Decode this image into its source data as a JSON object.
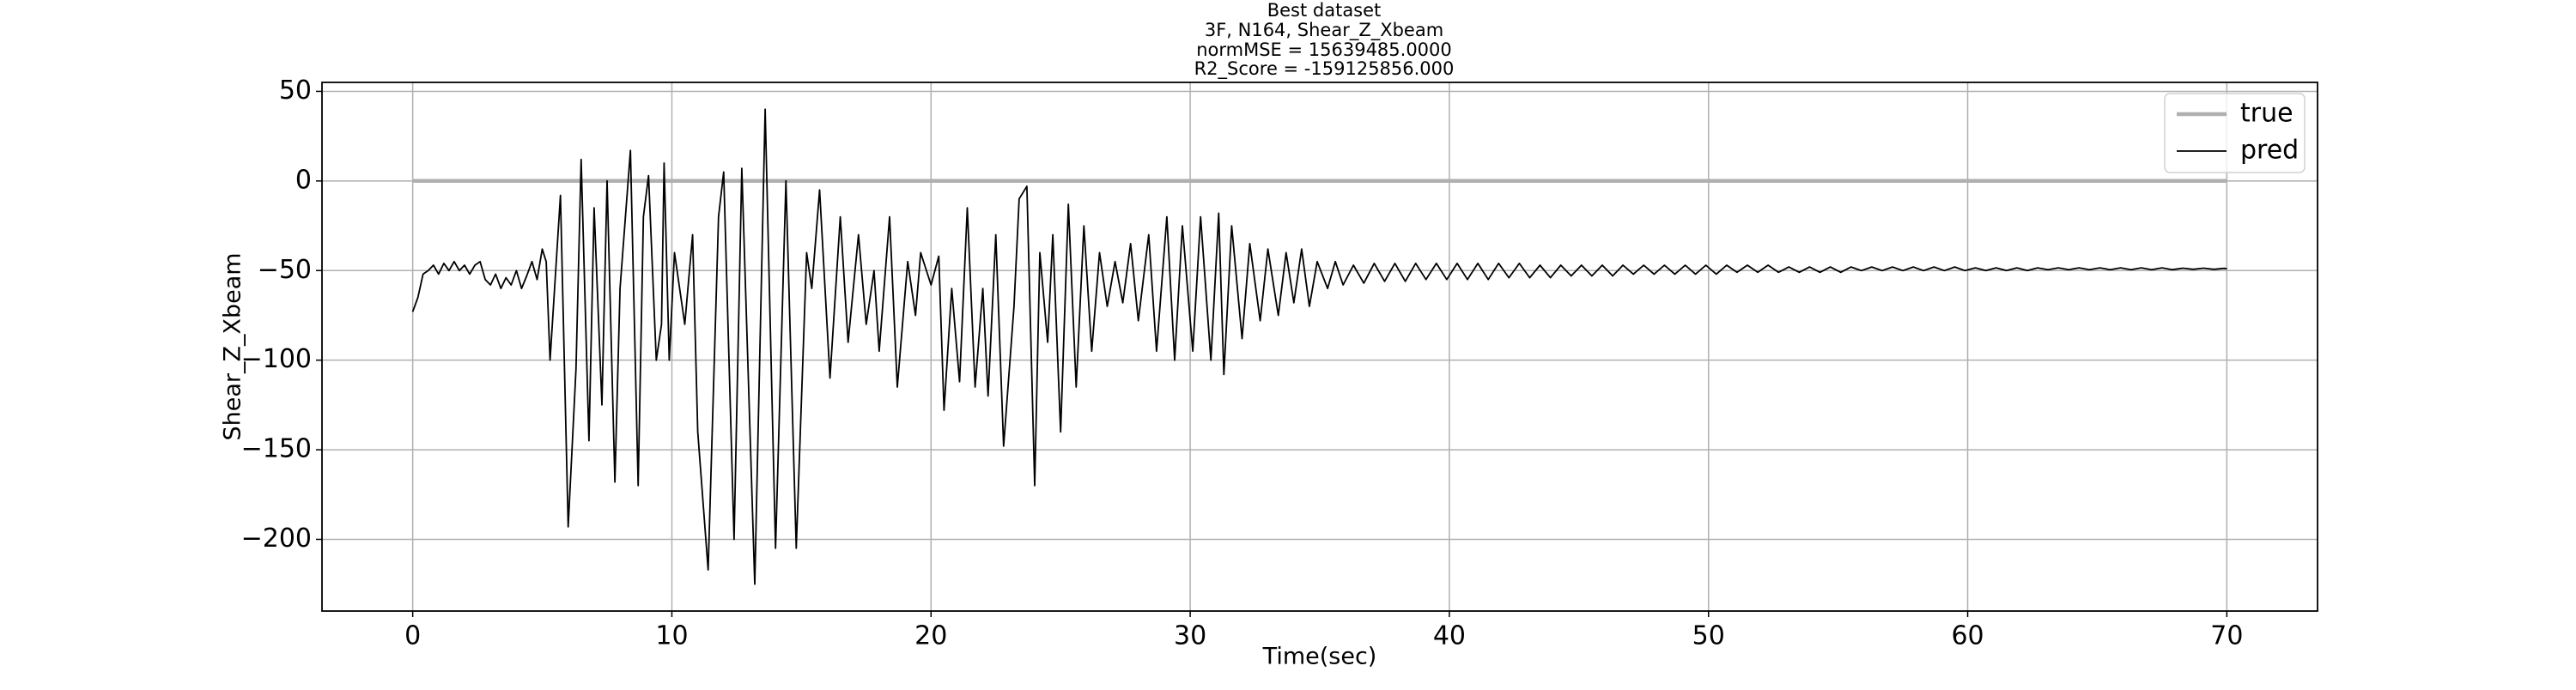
{
  "chart_data": {
    "type": "line",
    "title": [
      "Best dataset",
      "3F, N164, Shear_Z_Xbeam",
      "normMSE = 15639485.0000",
      "R2_Score = -159125856.000"
    ],
    "xlabel": "Time(sec)",
    "ylabel": "Shear_Z_Xbeam",
    "xlim": [
      -3.5,
      73.5
    ],
    "ylim": [
      -240,
      55
    ],
    "xticks": [
      0,
      10,
      20,
      30,
      40,
      50,
      60,
      70
    ],
    "yticks": [
      50,
      0,
      {
        "value": -50,
        "label": "−50"
      },
      {
        "value": -100,
        "label": "−100"
      },
      {
        "value": -150,
        "label": "−150"
      },
      {
        "value": -200,
        "label": "−200"
      }
    ],
    "grid": true,
    "legend": "upper right",
    "series": [
      {
        "name": "true",
        "color": "#b0b0b0",
        "x": [
          0,
          70
        ],
        "values": [
          0,
          0
        ]
      },
      {
        "name": "pred",
        "color": "#000000",
        "x": [
          0,
          0.2,
          0.4,
          0.6,
          0.8,
          1.0,
          1.2,
          1.4,
          1.6,
          1.8,
          2.0,
          2.2,
          2.4,
          2.6,
          2.8,
          3.0,
          3.2,
          3.4,
          3.6,
          3.8,
          4.0,
          4.2,
          4.4,
          4.6,
          4.8,
          5.0,
          5.15,
          5.3,
          5.7,
          6.0,
          6.3,
          6.5,
          6.8,
          7.0,
          7.3,
          7.5,
          7.8,
          8.0,
          8.4,
          8.7,
          8.9,
          9.1,
          9.4,
          9.6,
          9.7,
          9.9,
          10.1,
          10.5,
          10.8,
          11.0,
          11.4,
          11.8,
          12.0,
          12.4,
          12.7,
          13.2,
          13.6,
          14.0,
          14.4,
          14.8,
          15.2,
          15.4,
          15.7,
          16.1,
          16.5,
          16.8,
          17.2,
          17.5,
          17.8,
          18.0,
          18.4,
          18.7,
          19.1,
          19.4,
          19.6,
          20.0,
          20.3,
          20.5,
          20.8,
          21.1,
          21.4,
          21.7,
          22.0,
          22.2,
          22.5,
          22.8,
          23.2,
          23.4,
          23.7,
          24.0,
          24.2,
          24.5,
          24.7,
          25.0,
          25.3,
          25.6,
          25.9,
          26.2,
          26.5,
          26.8,
          27.1,
          27.4,
          27.7,
          28.0,
          28.4,
          28.7,
          29.1,
          29.4,
          29.7,
          30.1,
          30.4,
          30.8,
          31.1,
          31.3,
          31.6,
          32.0,
          32.3,
          32.7,
          33.0,
          33.4,
          33.7,
          34.0,
          34.3,
          34.6,
          34.9,
          35.3,
          35.6,
          35.9,
          36.3,
          36.7,
          37.1,
          37.5,
          37.9,
          38.3,
          38.7,
          39.1,
          39.5,
          39.9,
          40.3,
          40.7,
          41.1,
          41.5,
          41.9,
          42.3,
          42.7,
          43.1,
          43.5,
          43.9,
          44.3,
          44.7,
          45.1,
          45.5,
          45.9,
          46.3,
          46.7,
          47.1,
          47.5,
          47.9,
          48.3,
          48.7,
          49.1,
          49.5,
          49.9,
          50.3,
          50.7,
          51.1,
          51.5,
          51.9,
          52.3,
          52.7,
          53.1,
          53.5,
          53.9,
          54.3,
          54.7,
          55.1,
          55.5,
          55.9,
          56.3,
          56.7,
          57.1,
          57.5,
          57.9,
          58.3,
          58.7,
          59.1,
          59.5,
          59.9,
          60.3,
          60.7,
          61.1,
          61.5,
          61.9,
          62.3,
          62.7,
          63.1,
          63.5,
          63.9,
          64.3,
          64.7,
          65.1,
          65.5,
          65.9,
          66.3,
          66.7,
          67.1,
          67.5,
          67.9,
          68.3,
          68.7,
          69.1,
          69.5,
          69.9,
          70.0
        ],
        "values": [
          -73,
          -65,
          -52,
          -50,
          -47,
          -52,
          -46,
          -50,
          -45,
          -50,
          -47,
          -52,
          -47,
          -45,
          -55,
          -58,
          -52,
          -60,
          -54,
          -58,
          -50,
          -60,
          -53,
          -45,
          -55,
          -38,
          -45,
          -100,
          -8,
          -193,
          -105,
          12,
          -145,
          -15,
          -125,
          0,
          -168,
          -60,
          17,
          -170,
          -20,
          3,
          -100,
          -80,
          10,
          -100,
          -40,
          -80,
          -30,
          -140,
          -217,
          -20,
          5,
          -200,
          7,
          -225,
          40,
          -205,
          0,
          -205,
          -40,
          -60,
          -5,
          -110,
          -20,
          -90,
          -30,
          -80,
          -50,
          -95,
          -20,
          -115,
          -45,
          -75,
          -40,
          -58,
          -42,
          -128,
          -60,
          -112,
          -15,
          -115,
          -60,
          -120,
          -30,
          -148,
          -70,
          -10,
          -3,
          -170,
          -40,
          -90,
          -30,
          -140,
          -13,
          -115,
          -25,
          -95,
          -40,
          -70,
          -45,
          -68,
          -35,
          -78,
          -30,
          -95,
          -20,
          -100,
          -25,
          -95,
          -20,
          -100,
          -18,
          -108,
          -25,
          -88,
          -35,
          -78,
          -38,
          -75,
          -40,
          -68,
          -38,
          -70,
          -45,
          -60,
          -45,
          -58,
          -47,
          -57,
          -46,
          -56,
          -46,
          -56,
          -46,
          -55,
          -46,
          -55,
          -46,
          -55,
          -46,
          -55,
          -46,
          -54,
          -46,
          -54,
          -47,
          -54,
          -47,
          -53,
          -47,
          -53,
          -47,
          -53,
          -47,
          -52,
          -47,
          -52,
          -47,
          -52,
          -47,
          -52,
          -47,
          -52,
          -47,
          -51,
          -47,
          -51,
          -47,
          -51,
          -48,
          -51,
          -48,
          -51,
          -48,
          -51,
          -48,
          -50,
          -48,
          -50,
          -48,
          -50,
          -48,
          -50,
          -48,
          -50,
          -48,
          -50,
          -48.5,
          -50,
          -48.5,
          -50,
          -48.5,
          -50,
          -48.5,
          -49.5,
          -48.5,
          -49.5,
          -48.5,
          -49.5,
          -48.5,
          -49.5,
          -48.5,
          -49.5,
          -48.5,
          -49.5,
          -48.5,
          -49.5,
          -48.7,
          -49.3,
          -48.7,
          -49.3,
          -48.8,
          -49
        ]
      }
    ]
  }
}
